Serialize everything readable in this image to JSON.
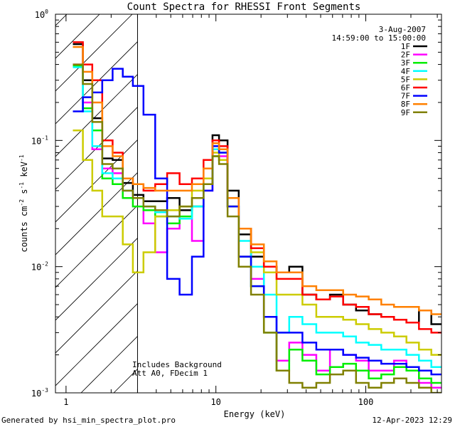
{
  "chart_data": {
    "type": "line",
    "title": "Count Spectra for RHESSI Front Segments",
    "xlabel": "Energy (keV)",
    "ylabel_parts": {
      "base": "counts cm",
      "exp1": "-2",
      "mid": " s",
      "exp2": "-1",
      "mid2": " keV",
      "exp3": "-1"
    },
    "xscale": "log",
    "yscale": "log",
    "xlim": [
      0.85,
      320
    ],
    "ylim": [
      0.001,
      1.0
    ],
    "x_ticks": [
      {
        "value": 1,
        "label": "1"
      },
      {
        "value": 10,
        "label": "10"
      },
      {
        "value": 100,
        "label": "100"
      }
    ],
    "y_ticks": [
      {
        "value": 1,
        "label": "10",
        "exp": "0"
      },
      {
        "value": 0.1,
        "label": "10",
        "exp": "-1"
      },
      {
        "value": 0.01,
        "label": "10",
        "exp": "-2"
      },
      {
        "value": 0.001,
        "label": "10",
        "exp": "-3"
      }
    ],
    "attenuator_cutoff_keV": 3.0,
    "date": "3-Aug-2007",
    "time_range": "14:59:00 to 15:00:00",
    "annotations": [
      "Includes Background",
      "Att A0, FDecim 1"
    ],
    "series": [
      {
        "name": "1F",
        "color": "#000000",
        "values": [
          0.58,
          0.3,
          0.15,
          0.072,
          0.07,
          0.046,
          0.037,
          0.033,
          0.033,
          0.035,
          0.028,
          0.03,
          0.045,
          0.11,
          0.1,
          0.04,
          0.018,
          0.012,
          0.01,
          0.009,
          0.01,
          0.006,
          0.0055,
          0.006,
          0.005,
          0.0045,
          0.0042,
          0.004,
          0.0038,
          0.0036,
          0.0045,
          0.0035
        ]
      },
      {
        "name": "2F",
        "color": "#ff00ff",
        "values": [
          0.4,
          0.2,
          0.085,
          0.06,
          0.055,
          0.04,
          0.035,
          0.022,
          0.013,
          0.02,
          0.024,
          0.016,
          0.04,
          0.085,
          0.075,
          0.03,
          0.012,
          0.008,
          0.004,
          0.0018,
          0.0025,
          0.002,
          0.0015,
          0.0022,
          0.002,
          0.0018,
          0.0015,
          0.0015,
          0.0018,
          0.0016,
          0.0012,
          0.0011
        ]
      },
      {
        "name": "3F",
        "color": "#00ee00",
        "values": [
          0.39,
          0.18,
          0.12,
          0.05,
          0.045,
          0.035,
          0.03,
          0.028,
          0.025,
          0.022,
          0.025,
          0.03,
          0.045,
          0.075,
          0.07,
          0.03,
          0.012,
          0.007,
          0.003,
          0.0015,
          0.0022,
          0.0018,
          0.0014,
          0.0016,
          0.0017,
          0.0015,
          0.0013,
          0.0014,
          0.0016,
          0.0015,
          0.0013,
          0.0012
        ]
      },
      {
        "name": "4F",
        "color": "#00ffff",
        "values": [
          0.38,
          0.17,
          0.09,
          0.055,
          0.05,
          0.04,
          0.035,
          0.03,
          0.027,
          0.025,
          0.024,
          0.03,
          0.05,
          0.085,
          0.08,
          0.035,
          0.016,
          0.01,
          0.006,
          0.003,
          0.004,
          0.0035,
          0.003,
          0.003,
          0.0028,
          0.0025,
          0.0024,
          0.0022,
          0.0022,
          0.002,
          0.0018,
          0.0016
        ]
      },
      {
        "name": "5F",
        "color": "#cccc00",
        "values": [
          0.12,
          0.07,
          0.04,
          0.025,
          0.025,
          0.015,
          0.009,
          0.013,
          0.025,
          0.028,
          0.03,
          0.04,
          0.05,
          0.08,
          0.07,
          0.03,
          0.02,
          0.013,
          0.009,
          0.006,
          0.006,
          0.005,
          0.004,
          0.004,
          0.0038,
          0.0035,
          0.0032,
          0.003,
          0.0028,
          0.0025,
          0.0022,
          0.002
        ]
      },
      {
        "name": "6F",
        "color": "#ff0000",
        "values": [
          0.6,
          0.4,
          0.3,
          0.1,
          0.08,
          0.05,
          0.045,
          0.04,
          0.045,
          0.055,
          0.045,
          0.05,
          0.07,
          0.1,
          0.09,
          0.035,
          0.02,
          0.014,
          0.01,
          0.008,
          0.008,
          0.006,
          0.0055,
          0.0058,
          0.005,
          0.0048,
          0.0042,
          0.004,
          0.0038,
          0.0036,
          0.0032,
          0.003
        ]
      },
      {
        "name": "7F",
        "color": "#0000ff",
        "values": [
          0.17,
          0.22,
          0.24,
          0.3,
          0.37,
          0.32,
          0.27,
          0.16,
          0.05,
          0.008,
          0.006,
          0.012,
          0.04,
          0.09,
          0.08,
          0.03,
          0.012,
          0.007,
          0.004,
          0.003,
          0.003,
          0.0025,
          0.0022,
          0.0022,
          0.002,
          0.0019,
          0.0018,
          0.0017,
          0.0017,
          0.0016,
          0.0015,
          0.0014
        ]
      },
      {
        "name": "8F",
        "color": "#ff8000",
        "values": [
          0.55,
          0.35,
          0.2,
          0.09,
          0.075,
          0.05,
          0.045,
          0.042,
          0.04,
          0.04,
          0.04,
          0.045,
          0.06,
          0.095,
          0.085,
          0.035,
          0.02,
          0.015,
          0.011,
          0.009,
          0.009,
          0.007,
          0.0065,
          0.0065,
          0.006,
          0.0058,
          0.0055,
          0.005,
          0.0048,
          0.0048,
          0.0045,
          0.0042
        ]
      },
      {
        "name": "9F",
        "color": "#808000",
        "values": [
          0.4,
          0.28,
          0.14,
          0.065,
          0.06,
          0.04,
          0.035,
          0.03,
          0.028,
          0.025,
          0.03,
          0.035,
          0.045,
          0.075,
          0.065,
          0.025,
          0.01,
          0.006,
          0.003,
          0.0015,
          0.0012,
          0.0011,
          0.0012,
          0.0014,
          0.0015,
          0.0012,
          0.0011,
          0.0012,
          0.0013,
          0.0012,
          0.0011,
          0.001
        ]
      }
    ],
    "x_energies": [
      1.2,
      1.4,
      1.6,
      1.9,
      2.2,
      2.6,
      3.0,
      3.6,
      4.3,
      5.2,
      6.3,
      7.6,
      9.0,
      10.0,
      11.0,
      13.0,
      15.5,
      19.0,
      23.0,
      28.0,
      34.0,
      42.0,
      52.0,
      64.0,
      78.0,
      95.0,
      115.0,
      140.0,
      170.0,
      205.0,
      250.0,
      300.0
    ]
  },
  "footer": {
    "left": "Generated by hsi_min_spectra_plot.pro",
    "right": "12-Apr-2023 12:29"
  }
}
